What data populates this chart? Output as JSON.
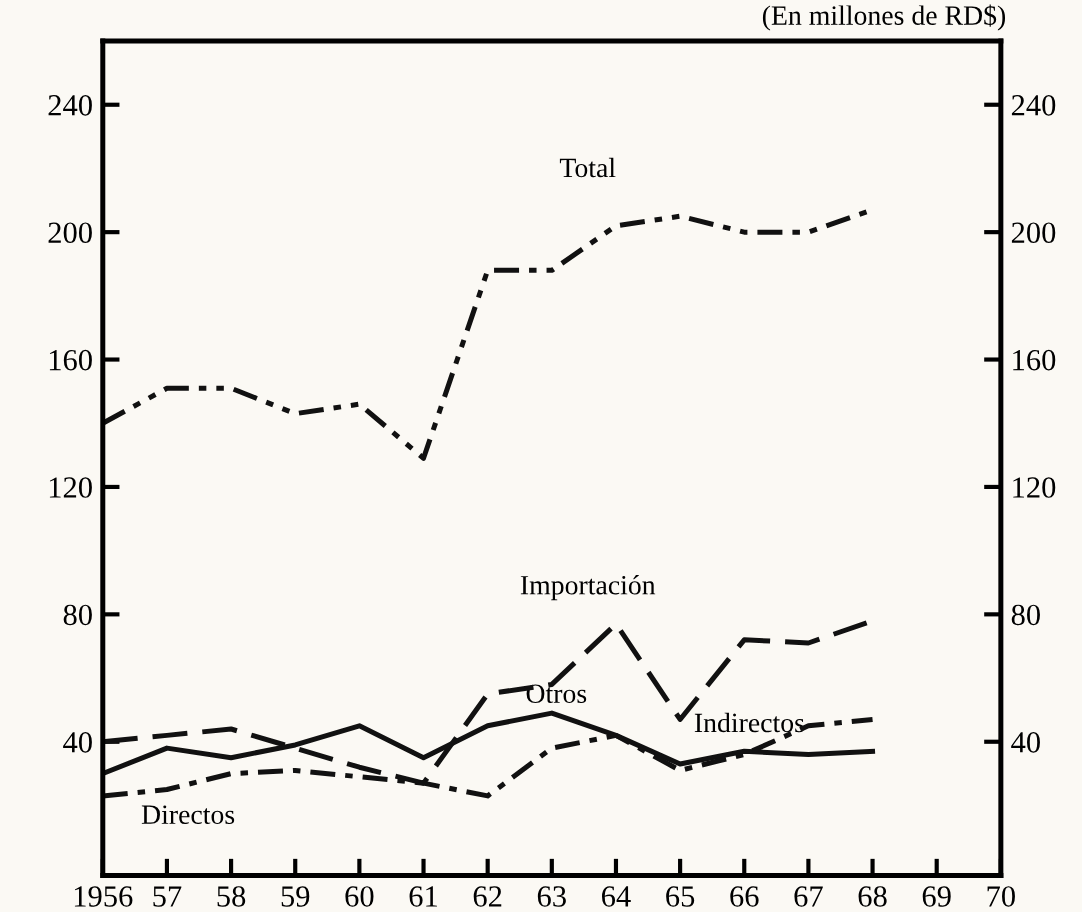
{
  "chart_data": {
    "type": "line",
    "subtitle": "(En millones de RD$)",
    "x": [
      1956,
      1957,
      1958,
      1959,
      1960,
      1961,
      1962,
      1963,
      1964,
      1965,
      1966,
      1967,
      1968
    ],
    "series": [
      {
        "color": "#111111",
        "line_style": "dashdotdot",
        "values": [
          140,
          151,
          151,
          143,
          146,
          129,
          188,
          188,
          202,
          205,
          200,
          200,
          207
        ]
      },
      {
        "color": "#111111",
        "line_style": "dashed",
        "values": [
          40,
          42,
          44,
          38,
          32,
          27,
          55,
          58,
          77,
          47,
          72,
          71,
          78
        ]
      },
      {
        "color": "#111111",
        "line_style": "solid",
        "values": [
          30,
          38,
          35,
          39,
          45,
          35,
          45,
          49,
          42,
          33,
          37,
          36,
          37
        ]
      },
      {
        "color": "#111111",
        "line_style": "dashdot",
        "values": [
          23,
          25,
          30,
          31,
          29,
          27,
          23,
          38,
          42,
          31,
          36,
          45,
          47
        ]
      }
    ],
    "annotations": [
      "Total",
      "Importación",
      "Otros",
      "Indirectos",
      "Directos"
    ],
    "xlim": [
      1956,
      1970
    ],
    "ylim": [
      -2,
      260
    ],
    "xticks": [
      {
        "value": 1956,
        "label": "1956"
      },
      {
        "value": 1957,
        "label": "57"
      },
      {
        "value": 1958,
        "label": "58"
      },
      {
        "value": 1959,
        "label": "59"
      },
      {
        "value": 1960,
        "label": "60"
      },
      {
        "value": 1961,
        "label": "61"
      },
      {
        "value": 1962,
        "label": "62"
      },
      {
        "value": 1963,
        "label": "63"
      },
      {
        "value": 1964,
        "label": "64"
      },
      {
        "value": 1965,
        "label": "65"
      },
      {
        "value": 1966,
        "label": "66"
      },
      {
        "value": 1967,
        "label": "67"
      },
      {
        "value": 1968,
        "label": "68"
      },
      {
        "value": 1969,
        "label": "69"
      },
      {
        "value": 1970,
        "label": "70"
      }
    ],
    "yticks": [
      40,
      80,
      120,
      160,
      200,
      240
    ],
    "y2lim": [
      -2,
      260
    ],
    "y2ticks": [
      40,
      80,
      120,
      160,
      200,
      240
    ],
    "grid": false,
    "legend": false
  }
}
